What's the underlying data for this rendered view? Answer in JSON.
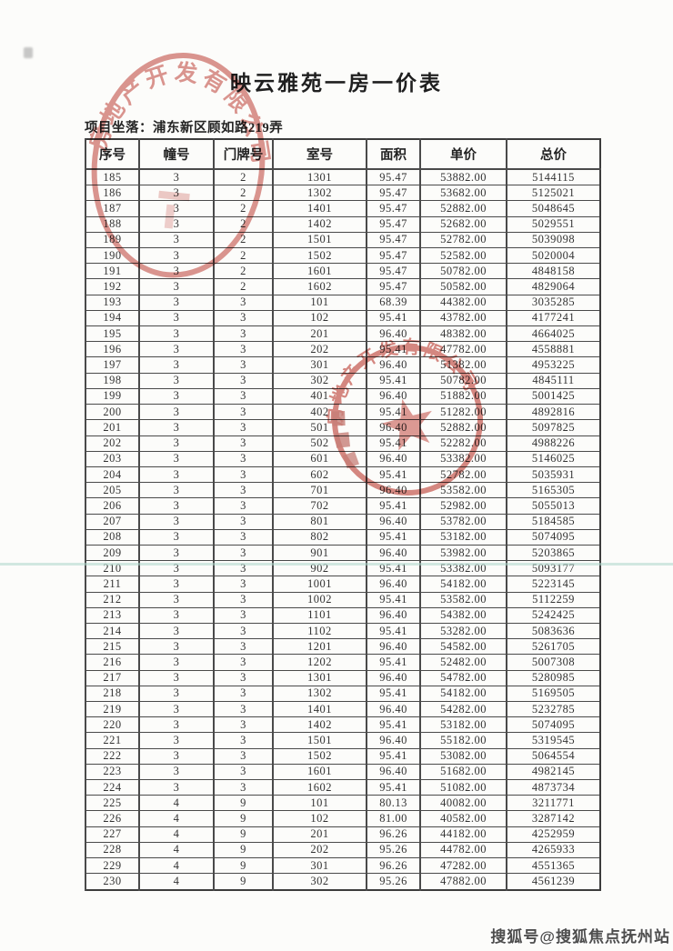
{
  "page": {
    "title": "映云雅苑一房一价表",
    "location_label": "项目坐落：",
    "location_value": "浦东新区顾如路219弄",
    "watermark": "搜狐号@搜狐焦点抚州站",
    "background": "#fcfcfa"
  },
  "seal": {
    "arc_text": "房地产开发有限公司",
    "color": "#bf4036"
  },
  "table": {
    "headers": [
      "序号",
      "幢号",
      "门牌号",
      "室号",
      "面积",
      "单价",
      "总价"
    ],
    "col_keys": [
      "xuhao",
      "zhuanghao",
      "menpaihao",
      "shihao",
      "mianji",
      "danjia",
      "zongjia"
    ],
    "rows": [
      [
        "185",
        "3",
        "2",
        "1301",
        "95.47",
        "53882.00",
        "5144115"
      ],
      [
        "186",
        "3",
        "2",
        "1302",
        "95.47",
        "53682.00",
        "5125021"
      ],
      [
        "187",
        "3",
        "2",
        "1401",
        "95.47",
        "52882.00",
        "5048645"
      ],
      [
        "188",
        "3",
        "2",
        "1402",
        "95.47",
        "52682.00",
        "5029551"
      ],
      [
        "189",
        "3",
        "2",
        "1501",
        "95.47",
        "52782.00",
        "5039098"
      ],
      [
        "190",
        "3",
        "2",
        "1502",
        "95.47",
        "52582.00",
        "5020004"
      ],
      [
        "191",
        "3",
        "2",
        "1601",
        "95.47",
        "50782.00",
        "4848158"
      ],
      [
        "192",
        "3",
        "2",
        "1602",
        "95.47",
        "50582.00",
        "4829064"
      ],
      [
        "193",
        "3",
        "3",
        "101",
        "68.39",
        "44382.00",
        "3035285"
      ],
      [
        "194",
        "3",
        "3",
        "102",
        "95.41",
        "43782.00",
        "4177241"
      ],
      [
        "195",
        "3",
        "3",
        "201",
        "96.40",
        "48382.00",
        "4664025"
      ],
      [
        "196",
        "3",
        "3",
        "202",
        "95.41",
        "47782.00",
        "4558881"
      ],
      [
        "197",
        "3",
        "3",
        "301",
        "96.40",
        "51382.00",
        "4953225"
      ],
      [
        "198",
        "3",
        "3",
        "302",
        "95.41",
        "50782.00",
        "4845111"
      ],
      [
        "199",
        "3",
        "3",
        "401",
        "96.40",
        "51882.00",
        "5001425"
      ],
      [
        "200",
        "3",
        "3",
        "402",
        "95.41",
        "51282.00",
        "4892816"
      ],
      [
        "201",
        "3",
        "3",
        "501",
        "96.40",
        "52882.00",
        "5097825"
      ],
      [
        "202",
        "3",
        "3",
        "502",
        "95.41",
        "52282.00",
        "4988226"
      ],
      [
        "203",
        "3",
        "3",
        "601",
        "96.40",
        "53382.00",
        "5146025"
      ],
      [
        "204",
        "3",
        "3",
        "602",
        "95.41",
        "52782.00",
        "5035931"
      ],
      [
        "205",
        "3",
        "3",
        "701",
        "96.40",
        "53582.00",
        "5165305"
      ],
      [
        "206",
        "3",
        "3",
        "702",
        "95.41",
        "52982.00",
        "5055013"
      ],
      [
        "207",
        "3",
        "3",
        "801",
        "96.40",
        "53782.00",
        "5184585"
      ],
      [
        "208",
        "3",
        "3",
        "802",
        "95.41",
        "53182.00",
        "5074095"
      ],
      [
        "209",
        "3",
        "3",
        "901",
        "96.40",
        "53982.00",
        "5203865"
      ],
      [
        "210",
        "3",
        "3",
        "902",
        "95.41",
        "53382.00",
        "5093177"
      ],
      [
        "211",
        "3",
        "3",
        "1001",
        "96.40",
        "54182.00",
        "5223145"
      ],
      [
        "212",
        "3",
        "3",
        "1002",
        "95.41",
        "53582.00",
        "5112259"
      ],
      [
        "213",
        "3",
        "3",
        "1101",
        "96.40",
        "54382.00",
        "5242425"
      ],
      [
        "214",
        "3",
        "3",
        "1102",
        "95.41",
        "53282.00",
        "5083636"
      ],
      [
        "215",
        "3",
        "3",
        "1201",
        "96.40",
        "54582.00",
        "5261705"
      ],
      [
        "216",
        "3",
        "3",
        "1202",
        "95.41",
        "52482.00",
        "5007308"
      ],
      [
        "217",
        "3",
        "3",
        "1301",
        "96.40",
        "54782.00",
        "5280985"
      ],
      [
        "218",
        "3",
        "3",
        "1302",
        "95.41",
        "54182.00",
        "5169505"
      ],
      [
        "219",
        "3",
        "3",
        "1401",
        "96.40",
        "54282.00",
        "5232785"
      ],
      [
        "220",
        "3",
        "3",
        "1402",
        "95.41",
        "53182.00",
        "5074095"
      ],
      [
        "221",
        "3",
        "3",
        "1501",
        "96.40",
        "55182.00",
        "5319545"
      ],
      [
        "222",
        "3",
        "3",
        "1502",
        "95.41",
        "53082.00",
        "5064554"
      ],
      [
        "223",
        "3",
        "3",
        "1601",
        "96.40",
        "51682.00",
        "4982145"
      ],
      [
        "224",
        "3",
        "3",
        "1602",
        "95.41",
        "51082.00",
        "4873734"
      ],
      [
        "225",
        "4",
        "9",
        "101",
        "80.13",
        "40082.00",
        "3211771"
      ],
      [
        "226",
        "4",
        "9",
        "102",
        "81.00",
        "40582.00",
        "3287142"
      ],
      [
        "227",
        "4",
        "9",
        "201",
        "96.26",
        "44182.00",
        "4252959"
      ],
      [
        "228",
        "4",
        "9",
        "202",
        "95.26",
        "44782.00",
        "4265933"
      ],
      [
        "229",
        "4",
        "9",
        "301",
        "96.26",
        "47282.00",
        "4551365"
      ],
      [
        "230",
        "4",
        "9",
        "302",
        "95.26",
        "47882.00",
        "4561239"
      ]
    ]
  }
}
